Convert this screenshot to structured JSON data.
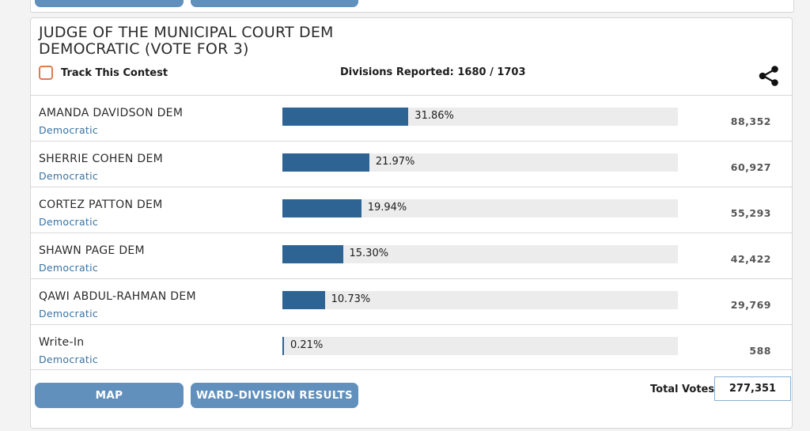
{
  "contest": {
    "title_line1": "JUDGE OF THE MUNICIPAL COURT DEM",
    "title_line2": "DEMOCRATIC (VOTE FOR 3)",
    "track_label": "Track This Contest",
    "divisions_reported": "Divisions Reported: 1680 / 1703",
    "total_votes_label": "Total Votes",
    "total_votes": "277,351",
    "buttons": {
      "map": "MAP",
      "ward_division": "WARD-DIVISION RESULTS"
    },
    "icons": {
      "share": "share-icon"
    },
    "colors": {
      "bar": "#2e6494",
      "bar_track": "#ececec",
      "button": "#6190bd",
      "party": "#3a72a2",
      "checkbox_border": "#e07a4f"
    }
  },
  "candidates": [
    {
      "name": "AMANDA DAVIDSON DEM",
      "party": "Democratic",
      "percent": 31.86,
      "percent_label": "31.86%",
      "votes": "88,352"
    },
    {
      "name": "SHERRIE COHEN DEM",
      "party": "Democratic",
      "percent": 21.97,
      "percent_label": "21.97%",
      "votes": "60,927"
    },
    {
      "name": "CORTEZ PATTON DEM",
      "party": "Democratic",
      "percent": 19.94,
      "percent_label": "19.94%",
      "votes": "55,293"
    },
    {
      "name": "SHAWN PAGE DEM",
      "party": "Democratic",
      "percent": 15.3,
      "percent_label": "15.30%",
      "votes": "42,422"
    },
    {
      "name": "QAWI ABDUL-RAHMAN DEM",
      "party": "Democratic",
      "percent": 10.73,
      "percent_label": "10.73%",
      "votes": "29,769"
    },
    {
      "name": "Write-In",
      "party": "Democratic",
      "percent": 0.21,
      "percent_label": "0.21%",
      "votes": "588"
    }
  ]
}
